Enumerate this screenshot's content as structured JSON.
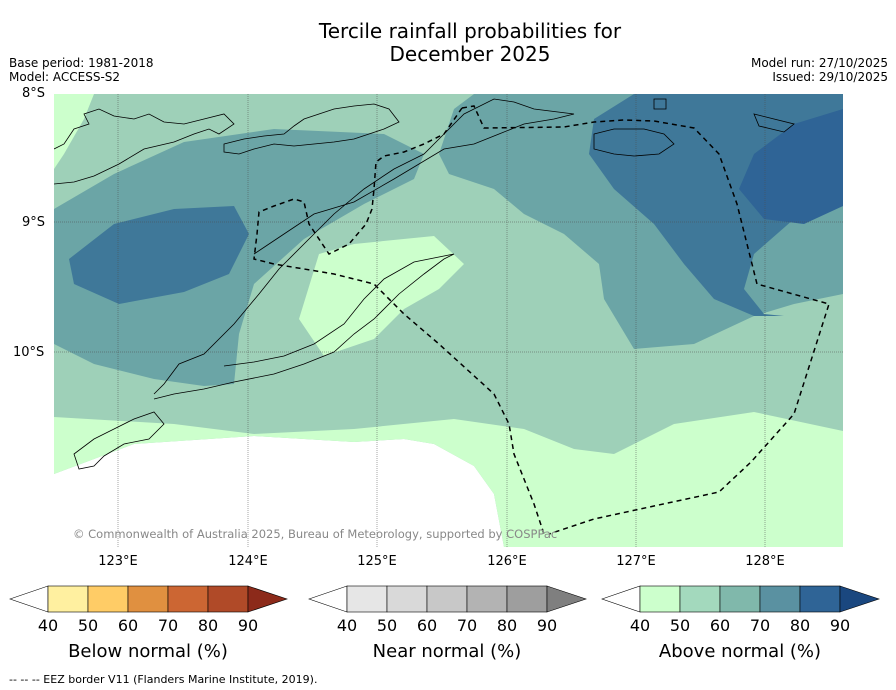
{
  "header": {
    "title_line1": "Tercile rainfall probabilities for",
    "title_line2": "December 2025",
    "base_period": "Base period: 1981-2018",
    "model": "Model: ACCESS-S2",
    "model_run": "Model run: 27/10/2025",
    "issued": "Issued: 29/10/2025"
  },
  "map": {
    "lat_labels": [
      "8°S",
      "9°S",
      "10°S"
    ],
    "lon_labels": [
      "123°E",
      "124°E",
      "125°E",
      "126°E",
      "127°E",
      "128°E"
    ],
    "copyright": "© Commonwealth of Australia 2025, Bureau of Meteorology, supported by COSPPac"
  },
  "colorbars": [
    {
      "label": "Below normal (%)",
      "ticks": [
        "40",
        "50",
        "60",
        "70",
        "80",
        "90"
      ],
      "colors": [
        "#ffffff",
        "#fff0a0",
        "#ffcc66",
        "#e09040",
        "#cc6633",
        "#b04a28",
        "#8c2a1a"
      ]
    },
    {
      "label": "Near normal (%)",
      "ticks": [
        "40",
        "50",
        "60",
        "70",
        "80",
        "90"
      ],
      "colors": [
        "#ffffff",
        "#e6e6e6",
        "#d9d9d9",
        "#c8c8c8",
        "#b3b3b3",
        "#9e9e9e",
        "#7f7f7f"
      ]
    },
    {
      "label": "Above normal (%)",
      "ticks": [
        "40",
        "50",
        "60",
        "70",
        "80",
        "90"
      ],
      "colors": [
        "#ffffff",
        "#ccffcc",
        "#a3d9bd",
        "#80b8ab",
        "#5a91a1",
        "#2f6496",
        "#1a477f"
      ]
    }
  ],
  "colors": {
    "above_50": "#ccffcc",
    "above_60": "#9ed0b8",
    "above_70": "#6ba5a6",
    "above_80": "#3f7899",
    "above_90": "#2f6496"
  },
  "footnote": "-- -- -- EEZ border V11 (Flanders Marine Institute, 2019)."
}
